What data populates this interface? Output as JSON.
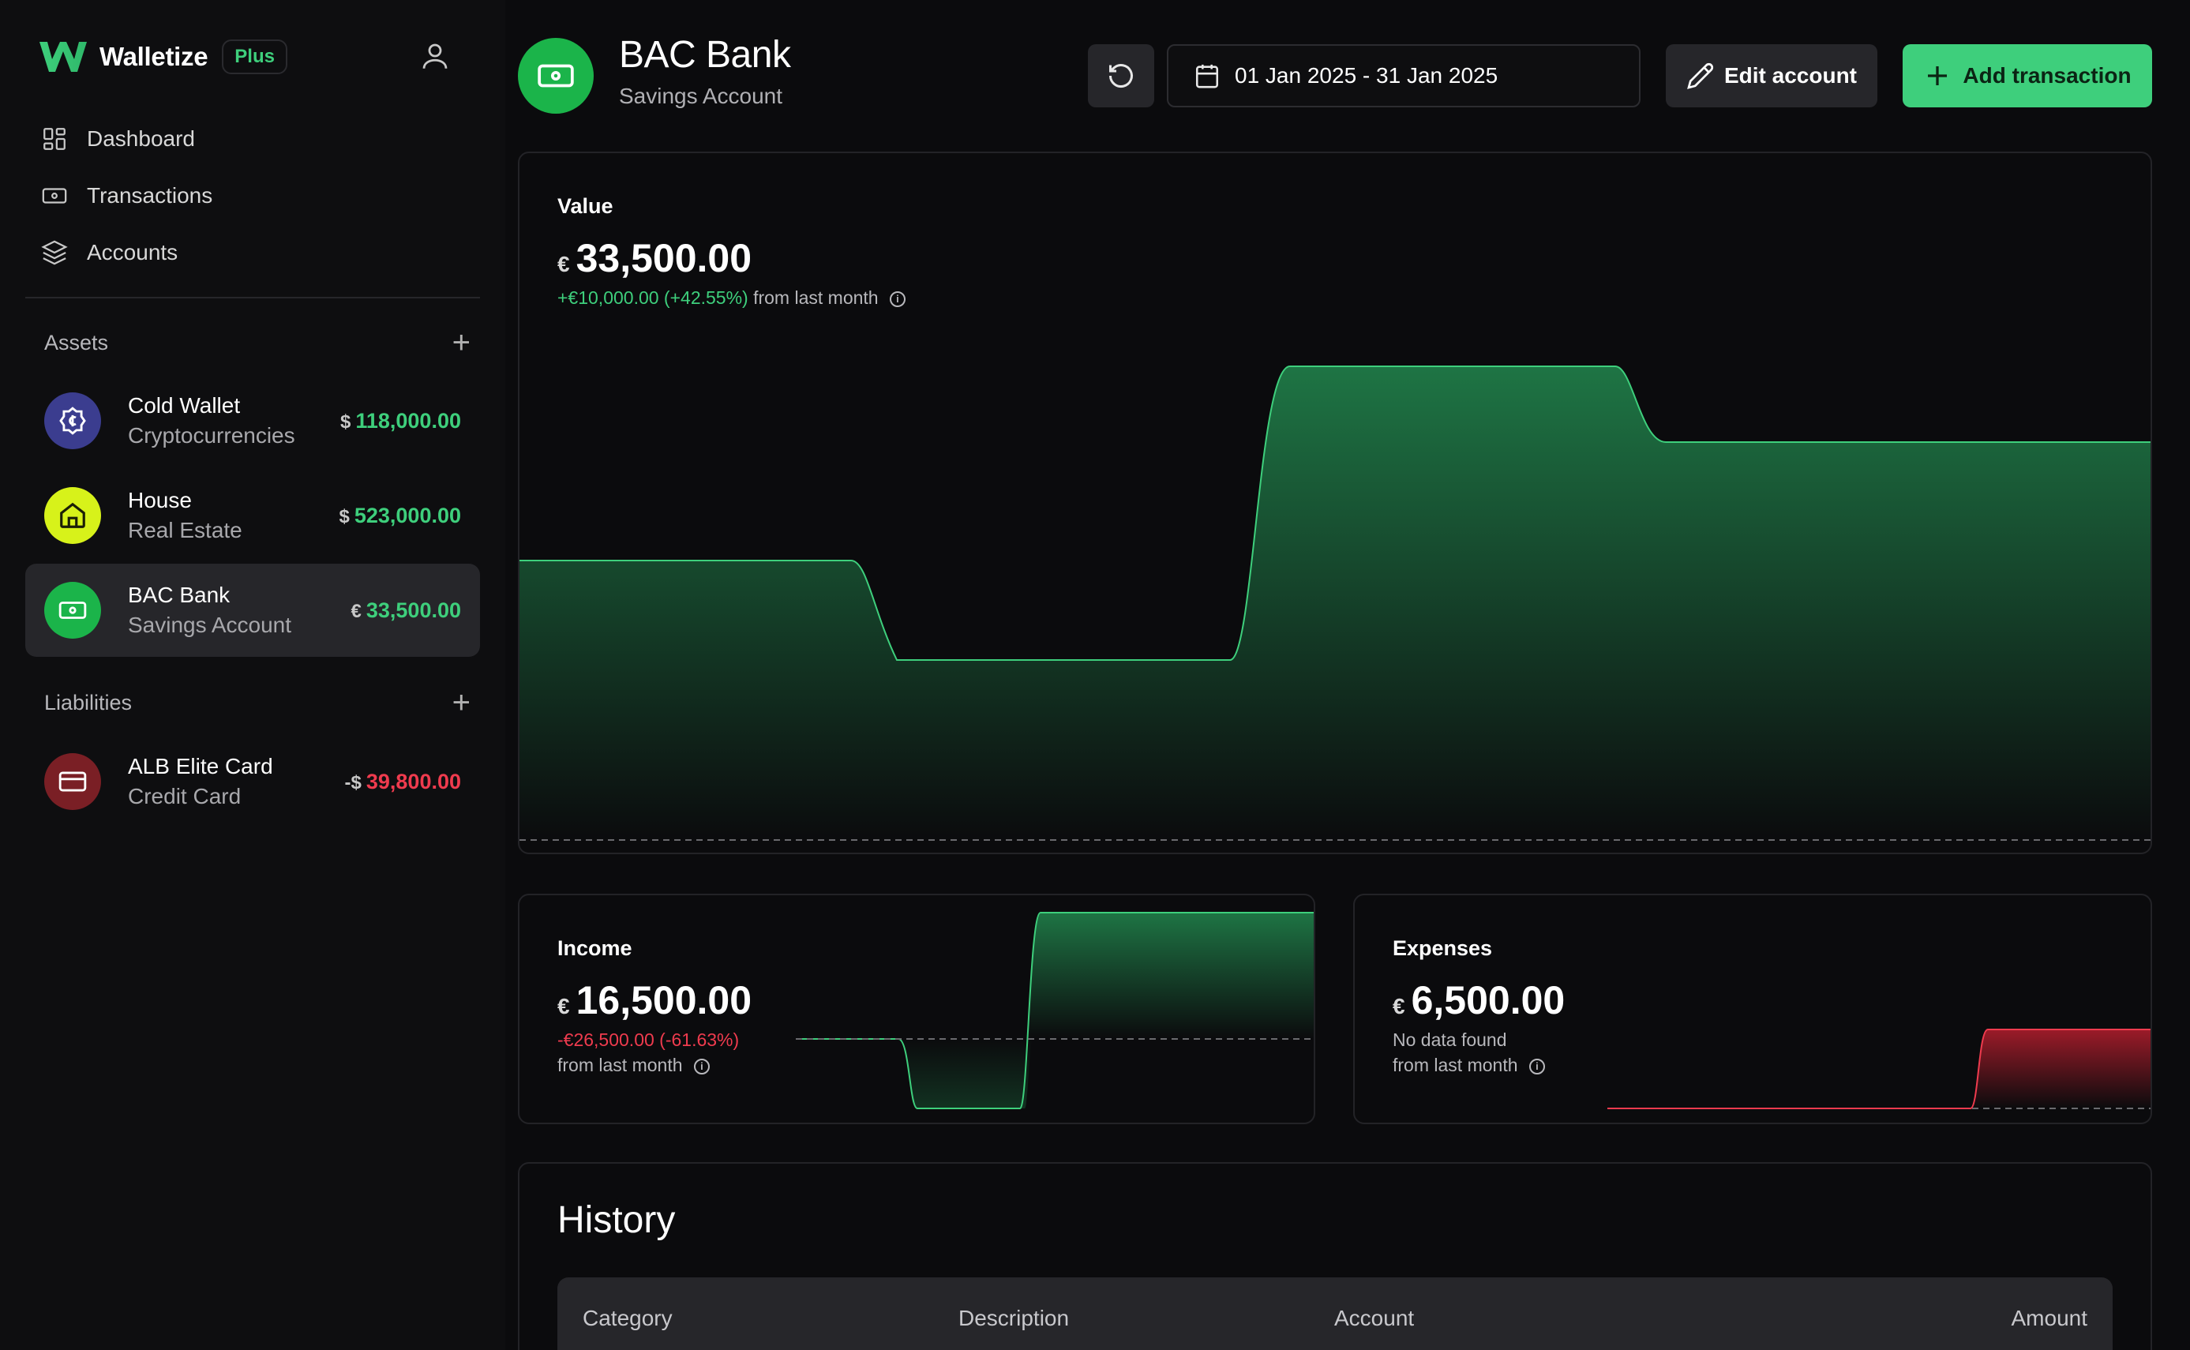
{
  "app": {
    "name": "Walletize",
    "plan_badge": "Plus"
  },
  "nav": [
    {
      "label": "Dashboard",
      "icon": "dashboard-icon"
    },
    {
      "label": "Transactions",
      "icon": "banknote-icon"
    },
    {
      "label": "Accounts",
      "icon": "layers-icon"
    }
  ],
  "assets": {
    "title": "Assets",
    "items": [
      {
        "name": "Cold Wallet",
        "type": "Cryptocurrencies",
        "currency": "$",
        "value": "118,000.00",
        "icon": "crypto-coin-icon",
        "color": "#3b3d8f"
      },
      {
        "name": "House",
        "type": "Real Estate",
        "currency": "$",
        "value": "523,000.00",
        "icon": "house-icon",
        "color": "#d7f21a"
      },
      {
        "name": "BAC Bank",
        "type": "Savings Account",
        "currency": "€",
        "value": "33,500.00",
        "icon": "banknote-icon",
        "color": "#1bb44a"
      }
    ]
  },
  "liabilities": {
    "title": "Liabilities",
    "items": [
      {
        "name": "ALB Elite Card",
        "type": "Credit Card",
        "currency": "-$",
        "value": "39,800.00",
        "icon": "credit-card-icon",
        "color": "#7a1f25"
      }
    ]
  },
  "header": {
    "title": "BAC Bank",
    "subtitle": "Savings Account",
    "date_range": "01 Jan 2025 - 31 Jan 2025",
    "edit_label": "Edit account",
    "add_label": "Add transaction"
  },
  "value_card": {
    "label": "Value",
    "currency": "€",
    "amount": "33,500.00",
    "delta": "+€10,000.00 (+42.55%)",
    "delta_suffix": "from last month"
  },
  "income_card": {
    "label": "Income",
    "currency": "€",
    "amount": "16,500.00",
    "delta": "-€26,500.00 (-61.63%)",
    "delta_suffix": "from last month"
  },
  "expense_card": {
    "label": "Expenses",
    "currency": "€",
    "amount": "6,500.00",
    "delta": "No data found",
    "delta_suffix": "from last month"
  },
  "history": {
    "title": "History",
    "columns": [
      "Category",
      "Description",
      "Account",
      "Amount"
    ]
  },
  "colors": {
    "accent": "#3ecf7c",
    "negative": "#ef3b4e",
    "background": "#0b0b0d"
  }
}
